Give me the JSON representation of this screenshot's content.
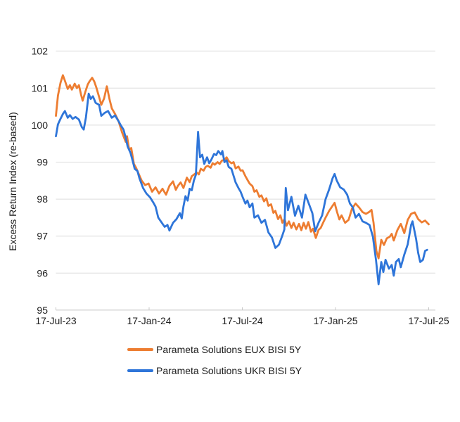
{
  "colors": {
    "grid": "#DCDCDC",
    "axis": "#C8C8C8",
    "text": "#1F1F1F",
    "background": "#FFFFFF"
  },
  "chart_data": {
    "type": "line",
    "title": "",
    "xlabel": "",
    "ylabel": "Excess Return Index (re-based)",
    "grid": "horizontal",
    "legend_position": "bottom",
    "x_unit": "months since 17-Jul-23",
    "xlim": [
      0,
      24
    ],
    "ylim": [
      95,
      102
    ],
    "y_ticks": [
      95,
      96,
      97,
      98,
      99,
      100,
      101,
      102
    ],
    "x_ticks": [
      {
        "pos": 0,
        "label": "17-Jul-23"
      },
      {
        "pos": 6,
        "label": "17-Jan-24"
      },
      {
        "pos": 12,
        "label": "17-Jul-24"
      },
      {
        "pos": 18,
        "label": "17-Jan-25"
      },
      {
        "pos": 24,
        "label": "17-Jul-25"
      }
    ],
    "series": [
      {
        "name": "Parameta Solutions EUX BISI 5Y",
        "color": "#ED7D31",
        "points": [
          [
            0,
            100.25
          ],
          [
            0.13,
            100.8
          ],
          [
            0.3,
            101.15
          ],
          [
            0.45,
            101.35
          ],
          [
            0.58,
            101.2
          ],
          [
            0.76,
            100.98
          ],
          [
            0.9,
            101.08
          ],
          [
            1.03,
            100.96
          ],
          [
            1.21,
            101.12
          ],
          [
            1.35,
            101.0
          ],
          [
            1.48,
            101.08
          ],
          [
            1.62,
            100.82
          ],
          [
            1.72,
            100.66
          ],
          [
            1.88,
            100.88
          ],
          [
            2.05,
            101.1
          ],
          [
            2.16,
            101.18
          ],
          [
            2.33,
            101.28
          ],
          [
            2.47,
            101.18
          ],
          [
            2.6,
            101.02
          ],
          [
            2.78,
            100.76
          ],
          [
            2.92,
            100.55
          ],
          [
            3.1,
            100.72
          ],
          [
            3.28,
            101.05
          ],
          [
            3.45,
            100.7
          ],
          [
            3.6,
            100.45
          ],
          [
            3.81,
            100.3
          ],
          [
            4.04,
            100.1
          ],
          [
            4.26,
            99.8
          ],
          [
            4.49,
            99.55
          ],
          [
            4.58,
            99.7
          ],
          [
            4.71,
            99.35
          ],
          [
            4.85,
            99.38
          ],
          [
            5.02,
            98.95
          ],
          [
            5.16,
            98.85
          ],
          [
            5.29,
            98.72
          ],
          [
            5.52,
            98.5
          ],
          [
            5.74,
            98.38
          ],
          [
            5.97,
            98.42
          ],
          [
            6.19,
            98.2
          ],
          [
            6.41,
            98.32
          ],
          [
            6.64,
            98.15
          ],
          [
            6.86,
            98.28
          ],
          [
            7.09,
            98.12
          ],
          [
            7.31,
            98.36
          ],
          [
            7.54,
            98.48
          ],
          [
            7.72,
            98.25
          ],
          [
            7.85,
            98.36
          ],
          [
            8.03,
            98.45
          ],
          [
            8.21,
            98.3
          ],
          [
            8.43,
            98.58
          ],
          [
            8.61,
            98.46
          ],
          [
            8.75,
            98.62
          ],
          [
            8.88,
            98.66
          ],
          [
            9.06,
            98.72
          ],
          [
            9.2,
            98.67
          ],
          [
            9.33,
            98.82
          ],
          [
            9.51,
            98.77
          ],
          [
            9.64,
            98.87
          ],
          [
            9.78,
            98.9
          ],
          [
            9.96,
            98.85
          ],
          [
            10.09,
            98.97
          ],
          [
            10.23,
            98.93
          ],
          [
            10.41,
            99.0
          ],
          [
            10.54,
            98.95
          ],
          [
            10.68,
            99.04
          ],
          [
            10.85,
            99.06
          ],
          [
            10.99,
            99.13
          ],
          [
            11.12,
            99.03
          ],
          [
            11.3,
            98.97
          ],
          [
            11.44,
            99.0
          ],
          [
            11.57,
            98.83
          ],
          [
            11.75,
            98.88
          ],
          [
            11.89,
            98.77
          ],
          [
            12.02,
            98.78
          ],
          [
            12.2,
            98.62
          ],
          [
            12.33,
            98.52
          ],
          [
            12.47,
            98.42
          ],
          [
            12.65,
            98.35
          ],
          [
            12.78,
            98.2
          ],
          [
            12.92,
            98.24
          ],
          [
            13.1,
            98.06
          ],
          [
            13.23,
            98.1
          ],
          [
            13.4,
            97.94
          ],
          [
            13.55,
            98.02
          ],
          [
            13.68,
            97.82
          ],
          [
            13.85,
            97.86
          ],
          [
            14.0,
            97.63
          ],
          [
            14.13,
            97.68
          ],
          [
            14.3,
            97.46
          ],
          [
            14.45,
            97.56
          ],
          [
            14.58,
            97.36
          ],
          [
            14.72,
            97.46
          ],
          [
            14.85,
            97.28
          ],
          [
            15.0,
            97.4
          ],
          [
            15.16,
            97.22
          ],
          [
            15.3,
            97.36
          ],
          [
            15.48,
            97.18
          ],
          [
            15.65,
            97.33
          ],
          [
            15.8,
            97.16
          ],
          [
            15.95,
            97.36
          ],
          [
            16.1,
            97.2
          ],
          [
            16.25,
            97.38
          ],
          [
            16.42,
            97.12
          ],
          [
            16.55,
            97.2
          ],
          [
            16.73,
            96.95
          ],
          [
            16.91,
            97.17
          ],
          [
            17.05,
            97.22
          ],
          [
            17.2,
            97.36
          ],
          [
            17.36,
            97.5
          ],
          [
            17.59,
            97.68
          ],
          [
            17.81,
            97.82
          ],
          [
            17.94,
            97.9
          ],
          [
            18.1,
            97.65
          ],
          [
            18.25,
            97.45
          ],
          [
            18.39,
            97.56
          ],
          [
            18.62,
            97.36
          ],
          [
            18.84,
            97.44
          ],
          [
            19.06,
            97.74
          ],
          [
            19.29,
            97.88
          ],
          [
            19.51,
            97.78
          ],
          [
            19.74,
            97.65
          ],
          [
            19.96,
            97.6
          ],
          [
            20.19,
            97.66
          ],
          [
            20.32,
            97.71
          ],
          [
            20.45,
            97.36
          ],
          [
            20.63,
            96.6
          ],
          [
            20.77,
            96.4
          ],
          [
            20.95,
            96.9
          ],
          [
            21.12,
            96.76
          ],
          [
            21.3,
            96.94
          ],
          [
            21.48,
            96.98
          ],
          [
            21.62,
            97.06
          ],
          [
            21.75,
            96.88
          ],
          [
            21.98,
            97.16
          ],
          [
            22.2,
            97.33
          ],
          [
            22.43,
            97.08
          ],
          [
            22.65,
            97.44
          ],
          [
            22.87,
            97.6
          ],
          [
            23.1,
            97.64
          ],
          [
            23.32,
            97.46
          ],
          [
            23.55,
            97.37
          ],
          [
            23.77,
            97.42
          ],
          [
            24,
            97.32
          ]
        ]
      },
      {
        "name": "Parameta Solutions UKR BISI 5Y",
        "color": "#2E75D9",
        "points": [
          [
            0,
            99.7
          ],
          [
            0.13,
            100.02
          ],
          [
            0.27,
            100.15
          ],
          [
            0.45,
            100.3
          ],
          [
            0.58,
            100.38
          ],
          [
            0.76,
            100.2
          ],
          [
            0.9,
            100.27
          ],
          [
            1.08,
            100.17
          ],
          [
            1.26,
            100.22
          ],
          [
            1.48,
            100.15
          ],
          [
            1.66,
            99.95
          ],
          [
            1.79,
            99.88
          ],
          [
            1.93,
            100.2
          ],
          [
            2.11,
            100.85
          ],
          [
            2.24,
            100.71
          ],
          [
            2.38,
            100.78
          ],
          [
            2.56,
            100.6
          ],
          [
            2.78,
            100.55
          ],
          [
            2.92,
            100.25
          ],
          [
            3.14,
            100.33
          ],
          [
            3.36,
            100.38
          ],
          [
            3.59,
            100.2
          ],
          [
            3.81,
            100.26
          ],
          [
            4.04,
            100.1
          ],
          [
            4.17,
            100.0
          ],
          [
            4.35,
            99.88
          ],
          [
            4.49,
            99.66
          ],
          [
            4.62,
            99.42
          ],
          [
            4.8,
            99.25
          ],
          [
            4.93,
            99.05
          ],
          [
            5.07,
            98.82
          ],
          [
            5.25,
            98.76
          ],
          [
            5.38,
            98.56
          ],
          [
            5.61,
            98.3
          ],
          [
            5.83,
            98.15
          ],
          [
            6.06,
            98.05
          ],
          [
            6.28,
            97.9
          ],
          [
            6.41,
            97.8
          ],
          [
            6.59,
            97.5
          ],
          [
            6.82,
            97.36
          ],
          [
            7.0,
            97.25
          ],
          [
            7.18,
            97.3
          ],
          [
            7.31,
            97.15
          ],
          [
            7.54,
            97.36
          ],
          [
            7.76,
            97.46
          ],
          [
            7.98,
            97.62
          ],
          [
            8.1,
            97.48
          ],
          [
            8.21,
            97.8
          ],
          [
            8.34,
            98.08
          ],
          [
            8.48,
            97.96
          ],
          [
            8.61,
            98.28
          ],
          [
            8.75,
            98.24
          ],
          [
            8.88,
            98.5
          ],
          [
            9.01,
            98.66
          ],
          [
            9.15,
            99.82
          ],
          [
            9.28,
            99.13
          ],
          [
            9.42,
            99.2
          ],
          [
            9.55,
            98.95
          ],
          [
            9.73,
            99.13
          ],
          [
            9.87,
            98.97
          ],
          [
            10.0,
            99.06
          ],
          [
            10.18,
            99.22
          ],
          [
            10.32,
            99.19
          ],
          [
            10.45,
            99.3
          ],
          [
            10.63,
            99.21
          ],
          [
            10.72,
            99.3
          ],
          [
            10.85,
            99.0
          ],
          [
            10.99,
            99.05
          ],
          [
            11.12,
            98.87
          ],
          [
            11.3,
            98.82
          ],
          [
            11.44,
            98.63
          ],
          [
            11.57,
            98.45
          ],
          [
            11.75,
            98.3
          ],
          [
            11.89,
            98.2
          ],
          [
            12.02,
            98.06
          ],
          [
            12.2,
            97.88
          ],
          [
            12.33,
            97.96
          ],
          [
            12.47,
            97.78
          ],
          [
            12.65,
            97.88
          ],
          [
            12.78,
            97.5
          ],
          [
            13.01,
            97.56
          ],
          [
            13.23,
            97.36
          ],
          [
            13.46,
            97.44
          ],
          [
            13.68,
            97.1
          ],
          [
            13.91,
            96.96
          ],
          [
            14.13,
            96.68
          ],
          [
            14.36,
            96.77
          ],
          [
            14.58,
            97.02
          ],
          [
            14.71,
            97.18
          ],
          [
            14.8,
            98.3
          ],
          [
            14.94,
            97.7
          ],
          [
            15.16,
            98.06
          ],
          [
            15.39,
            97.55
          ],
          [
            15.61,
            97.82
          ],
          [
            15.84,
            97.5
          ],
          [
            16.06,
            98.12
          ],
          [
            16.28,
            97.88
          ],
          [
            16.51,
            97.62
          ],
          [
            16.69,
            97.13
          ],
          [
            16.91,
            97.36
          ],
          [
            17.14,
            97.56
          ],
          [
            17.36,
            98.0
          ],
          [
            17.59,
            98.26
          ],
          [
            17.81,
            98.56
          ],
          [
            17.94,
            98.68
          ],
          [
            18.08,
            98.5
          ],
          [
            18.3,
            98.32
          ],
          [
            18.53,
            98.26
          ],
          [
            18.75,
            98.12
          ],
          [
            18.93,
            97.88
          ],
          [
            19.11,
            97.78
          ],
          [
            19.29,
            97.5
          ],
          [
            19.51,
            97.6
          ],
          [
            19.74,
            97.4
          ],
          [
            19.96,
            97.36
          ],
          [
            20.19,
            97.3
          ],
          [
            20.41,
            96.98
          ],
          [
            20.61,
            96.35
          ],
          [
            20.77,
            95.7
          ],
          [
            20.95,
            96.3
          ],
          [
            21.08,
            96.03
          ],
          [
            21.22,
            96.36
          ],
          [
            21.44,
            96.12
          ],
          [
            21.62,
            96.22
          ],
          [
            21.75,
            95.93
          ],
          [
            21.89,
            96.3
          ],
          [
            22.07,
            96.38
          ],
          [
            22.2,
            96.16
          ],
          [
            22.43,
            96.5
          ],
          [
            22.65,
            96.78
          ],
          [
            22.87,
            97.3
          ],
          [
            22.96,
            97.4
          ],
          [
            23.19,
            96.92
          ],
          [
            23.32,
            96.55
          ],
          [
            23.45,
            96.3
          ],
          [
            23.63,
            96.36
          ],
          [
            23.77,
            96.6
          ],
          [
            23.9,
            96.63
          ]
        ]
      }
    ]
  }
}
